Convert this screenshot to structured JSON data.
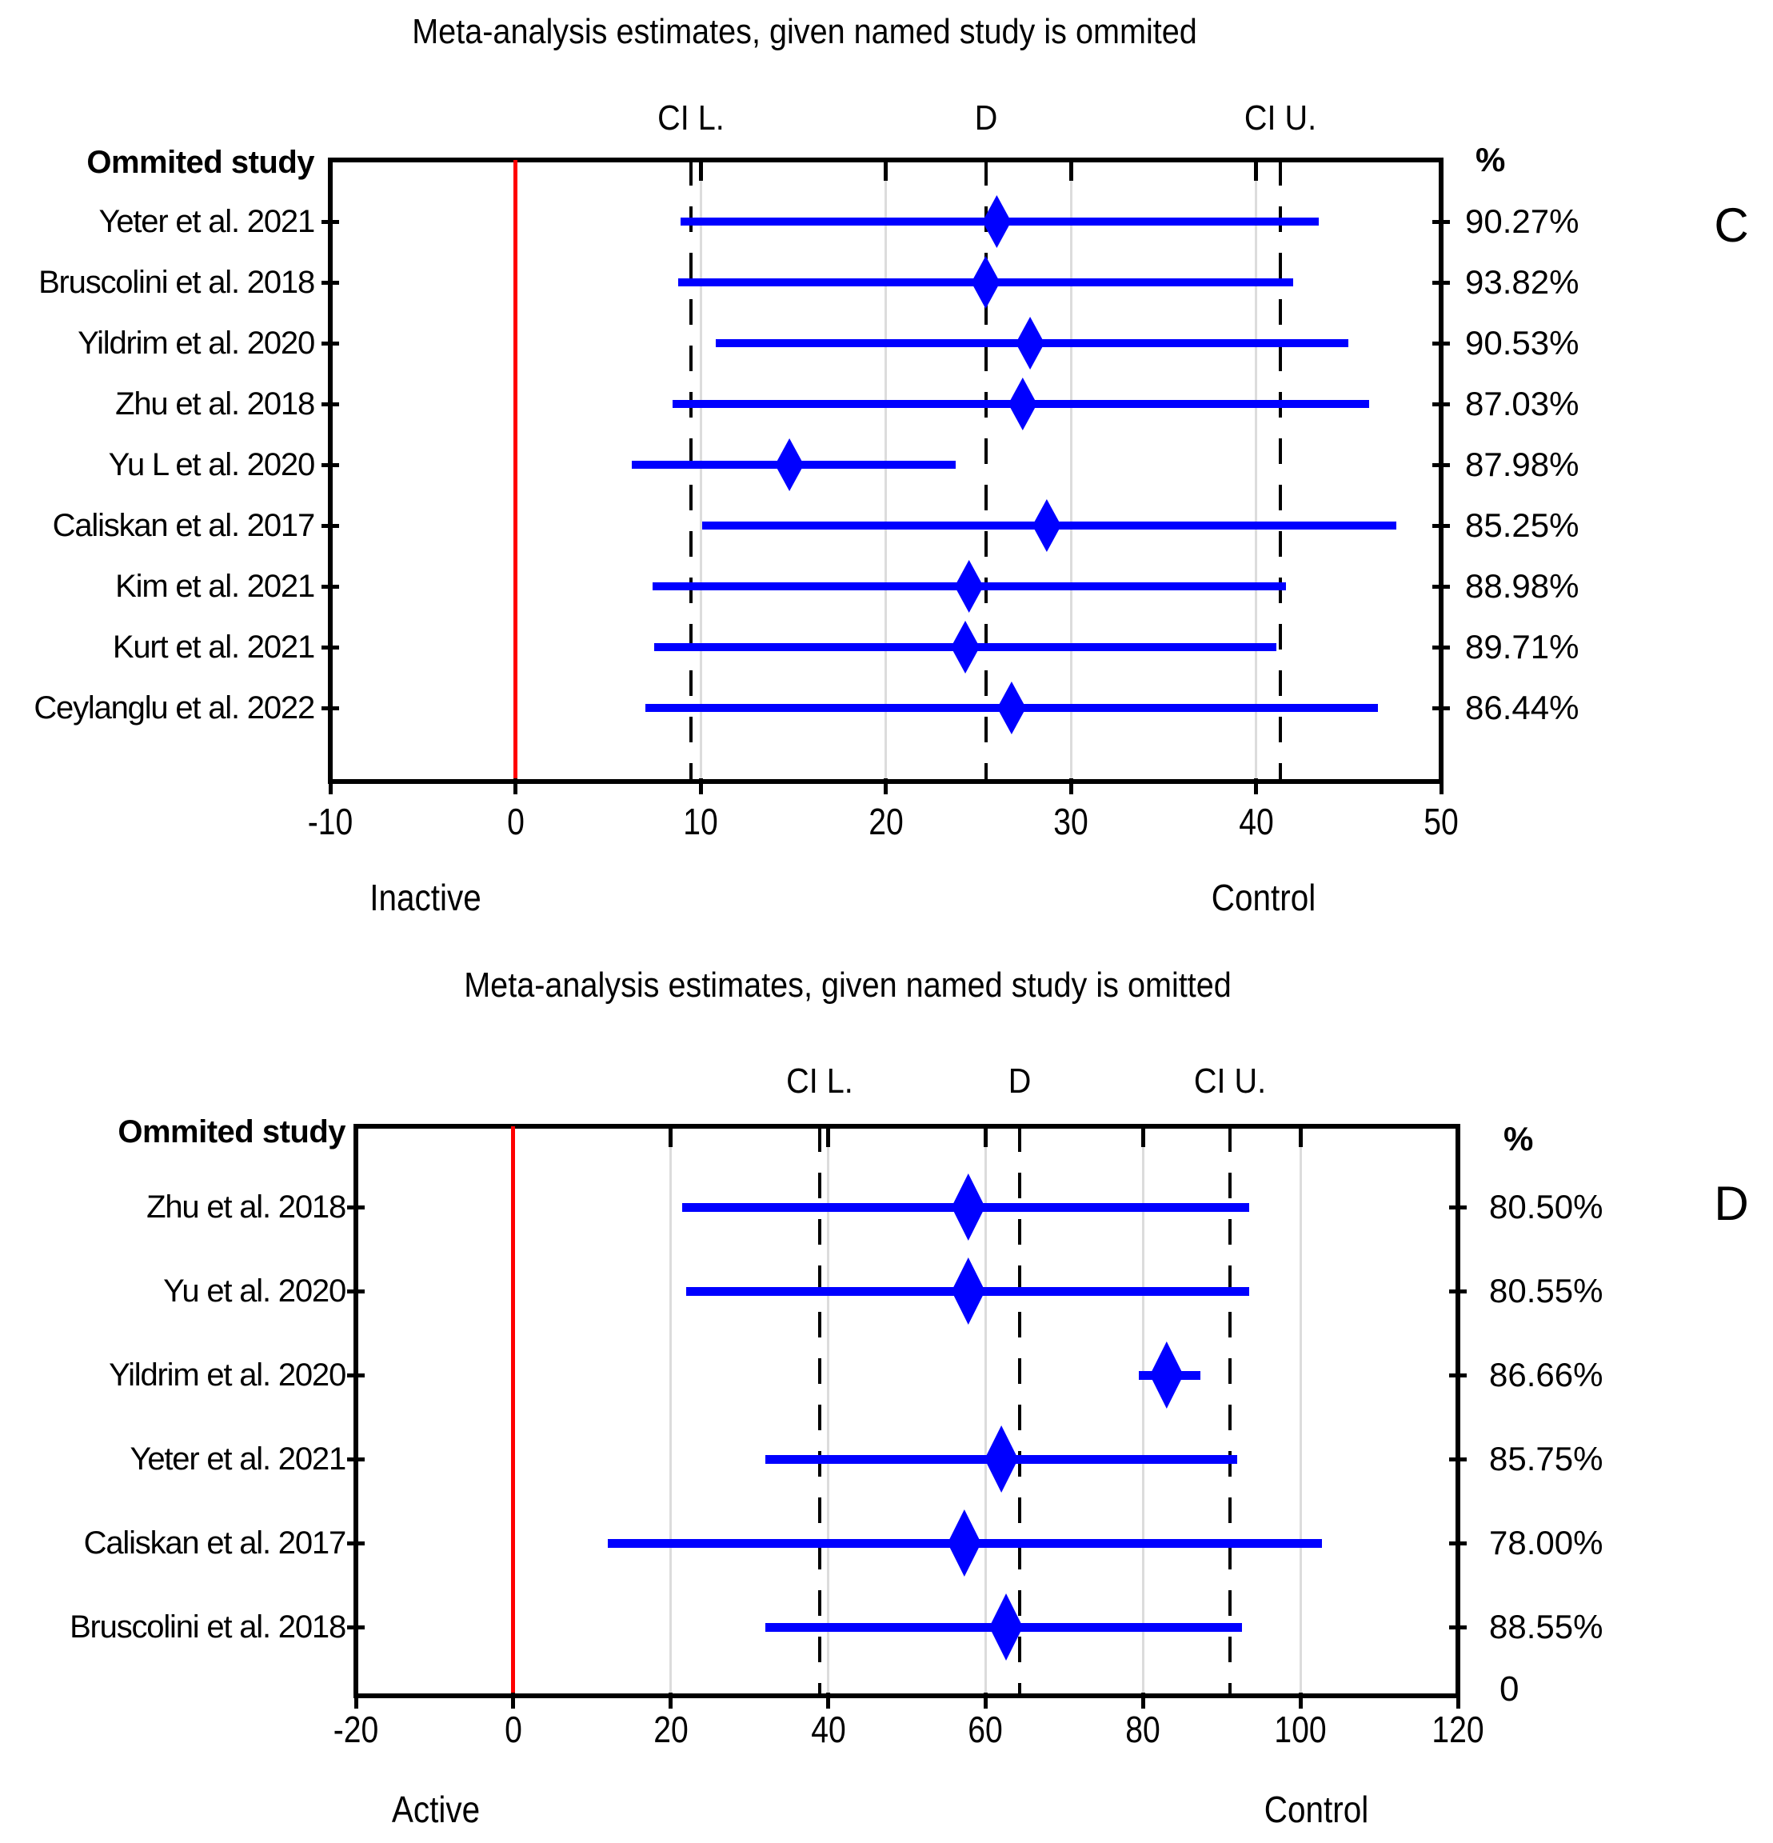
{
  "figure": {
    "description": "Leave-one-out meta-analysis forest plots, panels C and D",
    "background": "#ffffff"
  },
  "colors": {
    "estimate_blue": "#0000ff",
    "zero_line_red": "#ff0000",
    "reference_dash_black": "#000000",
    "gridline_gray": "#dcdcdc",
    "text": "#000000"
  },
  "chart_data": [
    {
      "type": "scatter",
      "variant": "forest-leave-one-out",
      "panel_letter": "C",
      "title": "Meta-analysis estimates, given named study is ommited",
      "left_header": "Ommited study",
      "right_header": "%",
      "col_headers": {
        "ci_l": "CI L.",
        "d": "D",
        "ci_u": "CI U."
      },
      "axis": {
        "min": -10,
        "max": 50,
        "ticks": [
          -10,
          0,
          10,
          20,
          30,
          40,
          50
        ],
        "zero_line": 0,
        "left_label": "Inactive",
        "right_label": "Control",
        "grid": true
      },
      "overall": {
        "ci_l": 9.5,
        "d": 25.4,
        "ci_u": 41.3
      },
      "studies": [
        {
          "label": "Yeter et al. 2021",
          "lo": 8.9,
          "est": 26.0,
          "hi": 43.4,
          "weight": "90.27%"
        },
        {
          "label": "Bruscolini et al. 2018",
          "lo": 8.8,
          "est": 25.4,
          "hi": 42.0,
          "weight": "93.82%"
        },
        {
          "label": "Yildrim et al. 2020",
          "lo": 10.8,
          "est": 27.8,
          "hi": 45.0,
          "weight": "90.53%"
        },
        {
          "label": "Zhu et al. 2018",
          "lo": 8.5,
          "est": 27.4,
          "hi": 46.1,
          "weight": "87.03%"
        },
        {
          "label": "Yu L et al. 2020",
          "lo": 6.3,
          "est": 14.8,
          "hi": 23.8,
          "weight": "87.98%"
        },
        {
          "label": "Caliskan et al. 2017",
          "lo": 10.1,
          "est": 28.7,
          "hi": 47.6,
          "weight": "85.25%"
        },
        {
          "label": "Kim et al. 2021",
          "lo": 7.4,
          "est": 24.5,
          "hi": 41.6,
          "weight": "88.98%"
        },
        {
          "label": "Kurt et al. 2021",
          "lo": 7.5,
          "est": 24.3,
          "hi": 41.1,
          "weight": "89.71%"
        },
        {
          "label": "Ceylanglu et al. 2022",
          "lo": 7.0,
          "est": 26.8,
          "hi": 46.6,
          "weight": "86.44%"
        }
      ]
    },
    {
      "type": "scatter",
      "variant": "forest-leave-one-out",
      "panel_letter": "D",
      "title": "Meta-analysis estimates, given named study is omitted",
      "left_header": "Ommited study",
      "right_header": "%",
      "col_headers": {
        "ci_l": "CI L.",
        "d": "D",
        "ci_u": "CI U."
      },
      "axis": {
        "min": -20,
        "max": 120,
        "ticks": [
          -20,
          0,
          20,
          40,
          60,
          80,
          100,
          120
        ],
        "zero_line": 0,
        "left_label": "Active",
        "right_label": "Control",
        "grid": true
      },
      "overall": {
        "ci_l": 38.9,
        "d": 64.3,
        "ci_u": 91.0
      },
      "studies": [
        {
          "label": "Zhu et al. 2018",
          "lo": 21.5,
          "est": 57.8,
          "hi": 93.5,
          "weight": "80.50%"
        },
        {
          "label": "Yu et al. 2020",
          "lo": 22.0,
          "est": 57.8,
          "hi": 93.5,
          "weight": "80.55%"
        },
        {
          "label": "Yildrim et al. 2020",
          "lo": 79.5,
          "est": 83.0,
          "hi": 87.3,
          "weight": "86.66%"
        },
        {
          "label": "Yeter et al. 2021",
          "lo": 32.0,
          "est": 62.0,
          "hi": 92.0,
          "weight": "85.75%"
        },
        {
          "label": "Caliskan et al. 2017",
          "lo": 12.0,
          "est": 57.3,
          "hi": 102.7,
          "weight": "78.00%"
        },
        {
          "label": "Bruscolini et al. 2018",
          "lo": 32.0,
          "est": 62.6,
          "hi": 92.6,
          "weight": "88.55%"
        }
      ],
      "footer_right": "0"
    }
  ]
}
